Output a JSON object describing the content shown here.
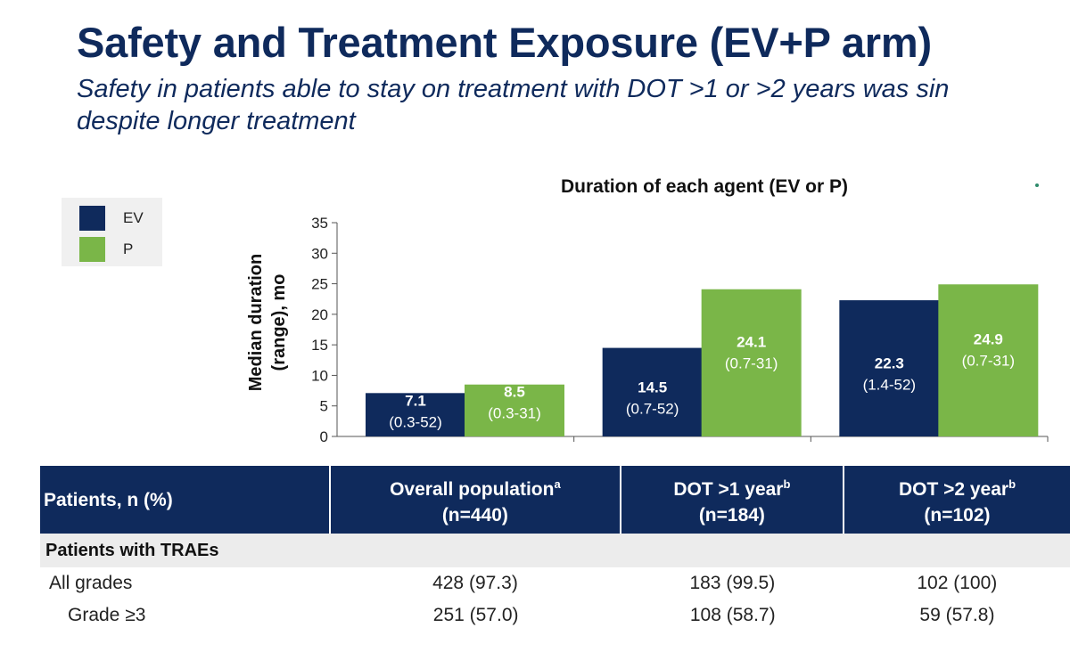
{
  "header": {
    "title": "Safety and Treatment Exposure (EV+P arm)",
    "subtitle_line1": "Safety in patients able to stay on treatment with DOT >1 or >2 years was sin",
    "subtitle_line2": "despite longer treatment"
  },
  "legend": {
    "items": [
      {
        "label": "EV",
        "color": "#0f2a5c"
      },
      {
        "label": "P",
        "color": "#7ab648"
      }
    ]
  },
  "chart_data": {
    "type": "bar",
    "title": "Duration of each agent (EV or P)",
    "ylabel_line1": "Median duration",
    "ylabel_line2": "(range), mo",
    "ylim": [
      0,
      35
    ],
    "yticks": [
      0,
      5,
      10,
      15,
      20,
      25,
      30,
      35
    ],
    "categories": [
      "Overall population",
      "DOT >1 year",
      "DOT >2 year"
    ],
    "series": [
      {
        "name": "EV",
        "color": "#0f2a5c",
        "values": [
          7.1,
          14.5,
          22.3
        ],
        "labels": [
          "7.1",
          "14.5",
          "22.3"
        ],
        "ranges": [
          "(0.3-52)",
          "(0.7-52)",
          "(1.4-52)"
        ]
      },
      {
        "name": "P",
        "color": "#7ab648",
        "values": [
          8.5,
          24.1,
          24.9
        ],
        "labels": [
          "8.5",
          "24.1",
          "24.9"
        ],
        "ranges": [
          "(0.3-31)",
          "(0.7-31)",
          "(0.7-31)"
        ]
      }
    ],
    "grid": false,
    "legend_position": "top-left"
  },
  "table": {
    "headers": [
      {
        "line1": "Patients, n (%)",
        "line2": "",
        "sup": ""
      },
      {
        "line1": "Overall population",
        "line2": "(n=440)",
        "sup": "a"
      },
      {
        "line1": "DOT >1 year",
        "line2": "(n=184)",
        "sup": "b"
      },
      {
        "line1": "DOT >2 year",
        "line2": "(n=102)",
        "sup": "b"
      }
    ],
    "section": "Patients with TRAEs",
    "rows": [
      {
        "label": "All grades",
        "values": [
          "428 (97.3)",
          "183 (99.5)",
          "102 (100)"
        ]
      },
      {
        "label": "Grade ≥3",
        "values": [
          "251 (57.0)",
          "108 (58.7)",
          "59 (57.8)"
        ]
      }
    ]
  }
}
